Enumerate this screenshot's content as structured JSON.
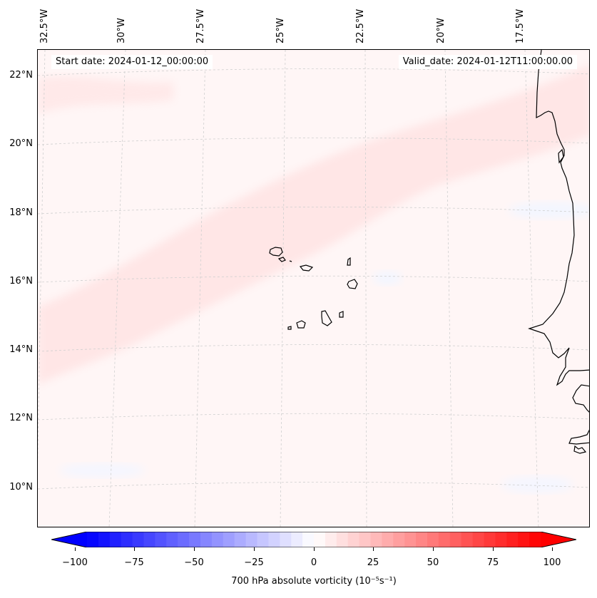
{
  "header": {
    "start_date": "Start date: 2024-01-12_00:00:00",
    "valid_date": "Valid_date: 2024-01-12T11:00:00.00"
  },
  "map": {
    "lon_labels": [
      "32.5°W",
      "30°W",
      "27.5°W",
      "25°W",
      "22.5°W",
      "20°W",
      "17.5°W"
    ],
    "lat_labels": [
      "22°N",
      "20°N",
      "18°N",
      "16°N",
      "14°N",
      "12°N",
      "10°N"
    ],
    "field": "700 hPa absolute vorticity",
    "features": [
      "Cape Verde islands",
      "West African coastline"
    ]
  },
  "colorbar": {
    "ticks": [
      "−100",
      "−75",
      "−50",
      "−25",
      "0",
      "25",
      "50",
      "75",
      "100"
    ],
    "label": "700 hPa absolute vorticity (10⁻⁵s⁻¹)",
    "min": -100,
    "max": 100,
    "colors": {
      "negative": "#0000ff",
      "zero": "#ffffff",
      "positive": "#ff0000"
    }
  },
  "chart_data": {
    "type": "heatmap",
    "title": "700 hPa absolute vorticity",
    "value_range": [
      -100,
      100
    ],
    "units": "10^-5 s^-1",
    "cmap": "bwr",
    "x_axis": "longitude",
    "y_axis": "latitude",
    "lon_range_deg": [
      -33,
      -15
    ],
    "lat_range_deg": [
      9,
      23
    ]
  }
}
